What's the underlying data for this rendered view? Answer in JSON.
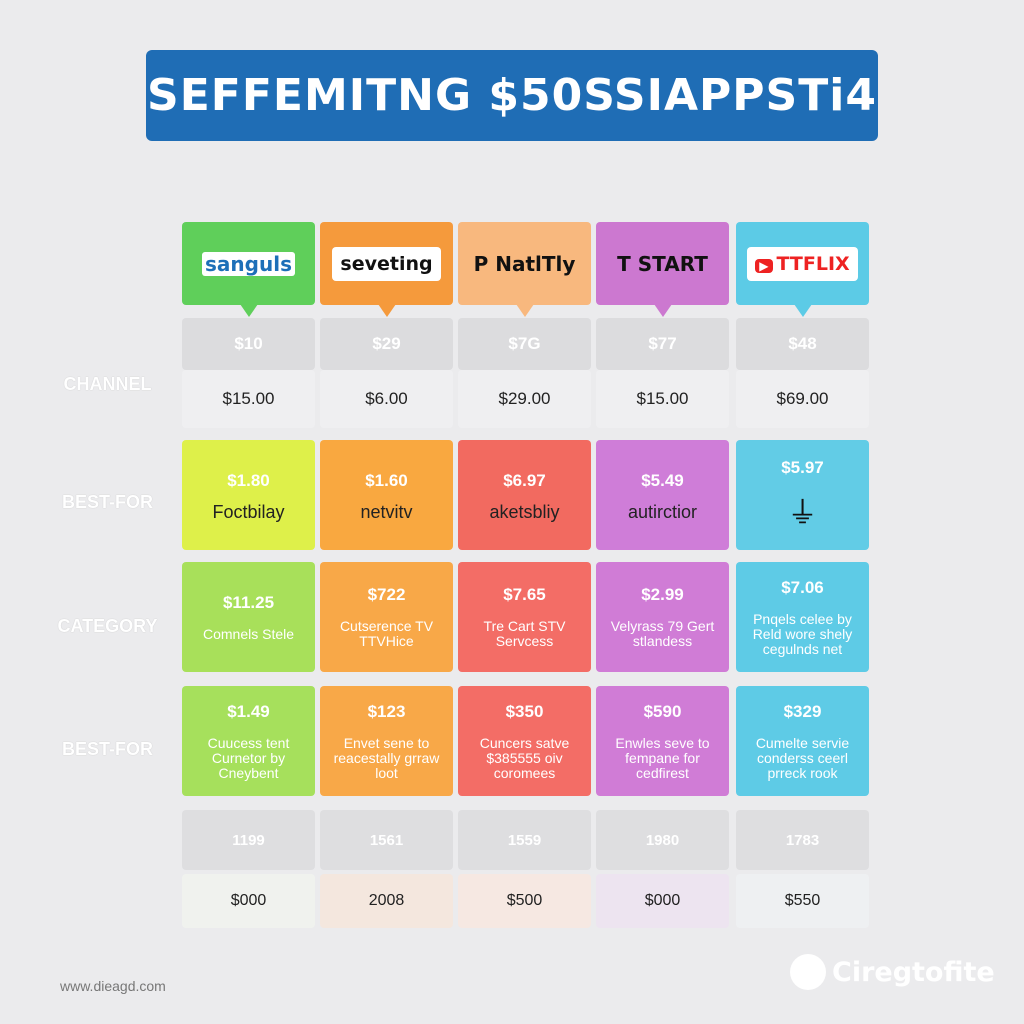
{
  "title": "SEFFEMITNG $50SSIAPPSTi4",
  "row_labels": [
    "CHANNEL",
    "BEST-FOR",
    "CATEGORY",
    "BEST-FOR"
  ],
  "columns": [
    {
      "logo": "sanguls",
      "header_color": "#5fcf5a",
      "price_a": "$10",
      "price_b": "$15.00",
      "r1": {
        "price": "$1.80",
        "text": "Foctbilay",
        "color": "#def04a"
      },
      "r2": {
        "price": "$11.25",
        "text": "Comnels Stele",
        "color": "#a8e05a"
      },
      "r3": {
        "price": "$1.49",
        "text": "Cuucess tent Curnetor by Cneybent",
        "color": "#a6e05c"
      },
      "num": "1199",
      "price_c": "$000",
      "tint": "#f0f2ee"
    },
    {
      "logo": "seveting",
      "header_color": "#f59a3c",
      "price_a": "$29",
      "price_b": "$6.00",
      "r1": {
        "price": "$1.60",
        "text": "netvitv",
        "color": "#f9a840"
      },
      "r2": {
        "price": "$722",
        "text": "Cutserence TV TTVHice",
        "color": "#f8a848"
      },
      "r3": {
        "price": "$123",
        "text": "Envet sene to reacestally grraw loot",
        "color": "#f8a848"
      },
      "num": "1561",
      "price_c": "2008",
      "tint": "#f4e7de"
    },
    {
      "logo": "NatlTly",
      "header_color": "#f8b87e",
      "price_a": "$7G",
      "price_b": "$29.00",
      "r1": {
        "price": "$6.97",
        "text": "aketsbliy",
        "color": "#f26a60"
      },
      "r2": {
        "price": "$7.65",
        "text": "Tre Cart STV Servcess",
        "color": "#f36d66"
      },
      "r3": {
        "price": "$350",
        "text": "Cuncers satve $385555 oiv coromees",
        "color": "#f36d66"
      },
      "num": "1559",
      "price_c": "$500",
      "tint": "#f6e8e2"
    },
    {
      "logo": "START",
      "header_color": "#cc78d0",
      "price_a": "$77",
      "price_b": "$15.00",
      "r1": {
        "price": "$5.49",
        "text": "autirctior",
        "color": "#cf7dd8"
      },
      "r2": {
        "price": "$2.99",
        "text": "Velyrass 79 Gert stlandess",
        "color": "#d07cd6"
      },
      "r3": {
        "price": "$590",
        "text": "Enwles seve to fempane for cedfirest",
        "color": "#d07cd6"
      },
      "num": "1980",
      "price_c": "$000",
      "tint": "#ede4f0"
    },
    {
      "logo": "TTFLIX",
      "header_color": "#5ccbe6",
      "price_a": "$48",
      "price_b": "$69.00",
      "r1": {
        "price": "$5.97",
        "text": "",
        "color": "#62cce6"
      },
      "r2": {
        "price": "$7.06",
        "text": "Pnqels celee by Reld wore shely cegulnds net",
        "color": "#5ecbe6"
      },
      "r3": {
        "price": "$329",
        "text": "Cumelte servie conderss ceerl prreck rook",
        "color": "#5ecbe6"
      },
      "num": "1783",
      "price_c": "$550",
      "tint": "#eef0f2"
    }
  ],
  "footer": {
    "url": "www.dieagd.com",
    "brand": "Ciregtofite"
  }
}
